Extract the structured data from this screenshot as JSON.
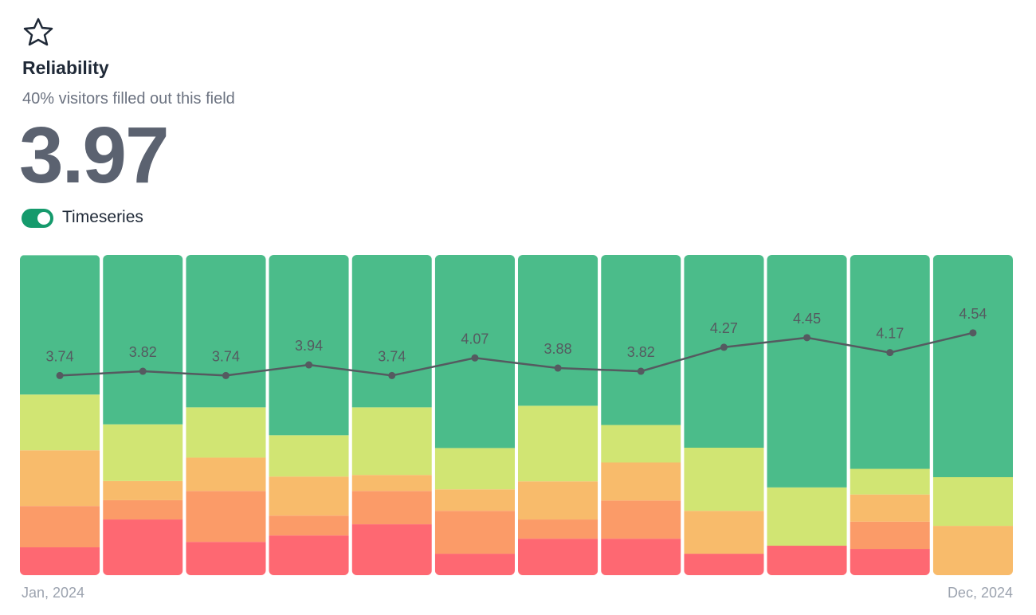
{
  "card": {
    "title": "Reliability",
    "subtitle": "40% visitors filled out this field",
    "score": 3.97,
    "toggle_label": "Timeseries"
  },
  "chart_data": {
    "type": "stacked-bar-line",
    "categories": [
      "Jan, 2024",
      null,
      null,
      null,
      null,
      null,
      null,
      null,
      null,
      null,
      null,
      "Dec, 2024"
    ],
    "ylim": [
      0,
      100
    ],
    "y2lim": [
      0,
      6
    ],
    "series": [
      {
        "color": "#fe6872",
        "values": [
          8.7,
          17.4,
          10.4,
          12.4,
          15.9,
          6.7,
          11.4,
          11.4,
          6.7,
          9.2,
          8.2,
          0
        ]
      },
      {
        "color": "#fb9b68",
        "values": [
          12.9,
          6,
          15.9,
          6.2,
          10.4,
          13.4,
          6,
          11.9,
          0,
          0,
          8.5,
          0
        ]
      },
      {
        "color": "#f8bb6b",
        "values": [
          17.4,
          6,
          10.4,
          12.2,
          5,
          6.7,
          11.9,
          11.9,
          13.4,
          0,
          8.5,
          15.4
        ]
      },
      {
        "color": "#d1e573",
        "values": [
          17.4,
          17.7,
          15.7,
          12.9,
          21.1,
          12.9,
          23.6,
          11.7,
          19.7,
          18.2,
          8,
          15.2
        ]
      },
      {
        "color": "#4bbc8a",
        "values": [
          43.5,
          52.9,
          47.6,
          56.3,
          47.6,
          60.3,
          47.1,
          53.1,
          60.2,
          72.6,
          66.8,
          69.4
        ]
      },
      {
        "type": "line",
        "axis": "y2",
        "color": "#555a60",
        "values": [
          3.74,
          3.82,
          3.74,
          3.94,
          3.74,
          4.07,
          3.88,
          3.82,
          4.27,
          4.45,
          4.17,
          4.54
        ]
      }
    ]
  }
}
